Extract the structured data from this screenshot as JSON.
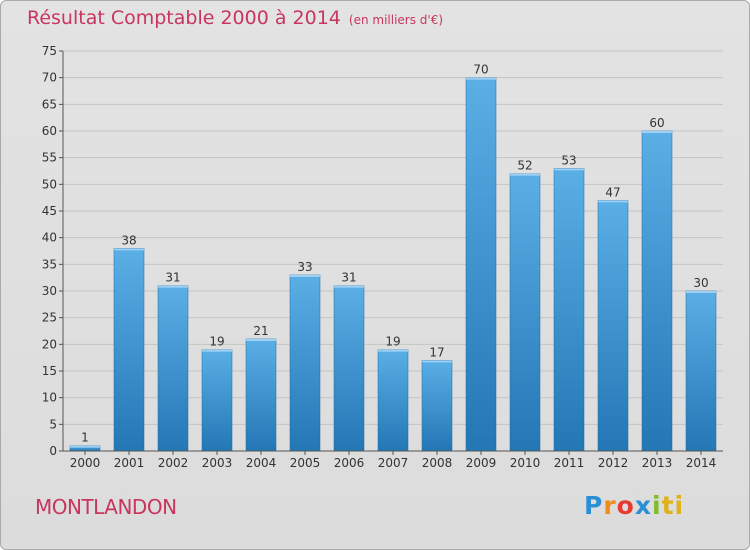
{
  "title": "Résultat Comptable 2000 à 2014",
  "subtitle": "(en milliers d'€)",
  "commune": "MONTLANDON",
  "logo": {
    "p1": "P",
    "p2": "r",
    "p3": "o",
    "p4": "x",
    "p5": "i",
    "p6": "ti"
  },
  "colors": {
    "bar_light": "#5aafe6",
    "bar_dark": "#2377b5",
    "title": "#c8365e",
    "grid": "#c4c4c4"
  },
  "chart_data": {
    "type": "bar",
    "categories": [
      "2000",
      "2001",
      "2002",
      "2003",
      "2004",
      "2005",
      "2006",
      "2007",
      "2008",
      "2009",
      "2010",
      "2011",
      "2012",
      "2013",
      "2014"
    ],
    "values": [
      1,
      38,
      31,
      19,
      21,
      33,
      31,
      19,
      17,
      70,
      52,
      53,
      47,
      60,
      30
    ],
    "ylim": [
      0,
      75
    ],
    "yticks": [
      0,
      5,
      10,
      15,
      20,
      25,
      30,
      35,
      40,
      45,
      50,
      55,
      60,
      65,
      70,
      75
    ],
    "grid": true,
    "xlabel": "",
    "ylabel": ""
  }
}
